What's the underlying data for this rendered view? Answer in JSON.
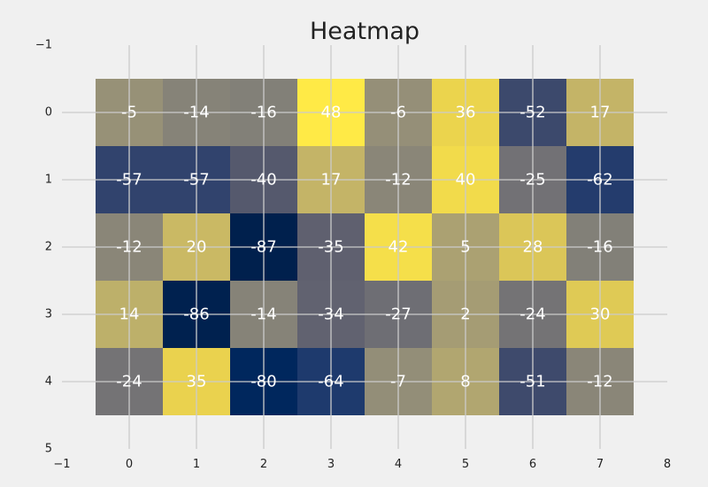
{
  "chart_data": {
    "type": "heatmap",
    "title": "Heatmap",
    "xlabel": "",
    "ylabel": "",
    "xlim": [
      -1,
      8
    ],
    "ylim": [
      5,
      -1
    ],
    "x_ticks": [
      -1,
      0,
      1,
      2,
      3,
      4,
      5,
      6,
      7,
      8
    ],
    "y_ticks": [
      -1,
      0,
      1,
      2,
      3,
      4,
      5
    ],
    "columns": [
      0,
      1,
      2,
      3,
      4,
      5,
      6,
      7
    ],
    "rows": [
      0,
      1,
      2,
      3,
      4
    ],
    "values": [
      [
        -5,
        -14,
        -16,
        48,
        -6,
        36,
        -52,
        17
      ],
      [
        -57,
        -57,
        -40,
        17,
        -12,
        40,
        -25,
        -62
      ],
      [
        -12,
        20,
        -87,
        -35,
        42,
        5,
        28,
        -16
      ],
      [
        14,
        -86,
        -14,
        -34,
        -27,
        2,
        -24,
        30
      ],
      [
        -24,
        35,
        -80,
        -64,
        -7,
        8,
        -51,
        -12
      ]
    ],
    "colormap": "cividis",
    "vmin": -87,
    "vmax": 48,
    "grid": true,
    "background": "#f0f0f0",
    "grid_color": "#cbcbcb",
    "cell_text_color": "#ffffff"
  }
}
